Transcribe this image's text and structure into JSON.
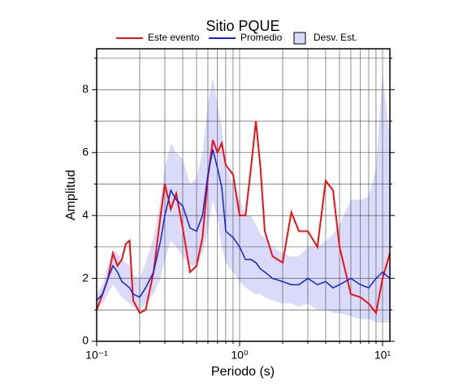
{
  "chart_data": {
    "type": "line",
    "title": "Sitio PQUE",
    "xlabel": "Periodo (s)",
    "ylabel": "Amplitud",
    "xscale": "log",
    "grid": true,
    "xlim": [
      0.1,
      11.25
    ],
    "ylim": [
      0,
      9.3
    ],
    "xticks": [
      {
        "value": 0.1,
        "label": "10⁻¹"
      },
      {
        "value": 1,
        "label": "10⁰"
      },
      {
        "value": 10,
        "label": "10¹"
      }
    ],
    "x_minor_ticks": [
      0.2,
      0.3,
      0.4,
      0.5,
      0.6,
      0.7,
      0.8,
      0.9,
      2,
      3,
      4,
      5,
      6,
      7,
      8,
      9
    ],
    "yticks": [
      0,
      2,
      4,
      6,
      8
    ],
    "y_minor_ticks": [
      1,
      3,
      5,
      7,
      9
    ],
    "x": [
      0.1,
      0.11,
      0.12,
      0.13,
      0.14,
      0.15,
      0.16,
      0.17,
      0.18,
      0.2,
      0.22,
      0.25,
      0.28,
      0.3,
      0.33,
      0.36,
      0.4,
      0.45,
      0.5,
      0.55,
      0.6,
      0.65,
      0.7,
      0.75,
      0.8,
      0.9,
      1.0,
      1.1,
      1.2,
      1.3,
      1.4,
      1.5,
      1.7,
      2.0,
      2.3,
      2.6,
      3.0,
      3.5,
      4.0,
      4.5,
      5.0,
      6.0,
      7.0,
      8.0,
      9.0,
      10,
      11.25
    ],
    "series": [
      {
        "name": "Este evento",
        "color": "#ee1111",
        "values": [
          1.0,
          1.5,
          2.0,
          2.8,
          2.4,
          2.6,
          3.1,
          3.2,
          1.3,
          0.9,
          1.0,
          2.2,
          4.0,
          5.0,
          4.2,
          4.7,
          3.6,
          2.2,
          2.4,
          3.3,
          5.2,
          6.4,
          6.0,
          6.3,
          5.6,
          5.3,
          4.0,
          4.0,
          5.5,
          7.0,
          5.5,
          3.5,
          2.7,
          2.5,
          4.1,
          3.5,
          3.5,
          3.0,
          5.1,
          4.8,
          3.0,
          1.5,
          1.4,
          1.2,
          0.9,
          2.0,
          2.8
        ]
      },
      {
        "name": "Promedio",
        "color": "#1122dd",
        "values": [
          1.3,
          1.5,
          2.0,
          2.4,
          2.2,
          1.9,
          1.8,
          1.7,
          1.5,
          1.4,
          1.7,
          2.2,
          3.2,
          4.0,
          4.8,
          4.5,
          4.3,
          3.6,
          3.5,
          4.0,
          5.3,
          6.1,
          5.5,
          4.9,
          3.5,
          3.3,
          3.0,
          2.6,
          2.6,
          2.5,
          2.3,
          2.2,
          2.0,
          1.9,
          1.8,
          1.8,
          2.0,
          1.8,
          1.9,
          1.7,
          1.8,
          2.0,
          1.8,
          1.7,
          2.0,
          2.2,
          2.0
        ]
      }
    ],
    "band": {
      "name": "Desv. Est.",
      "color": "#dadafa",
      "lower": [
        1.0,
        1.2,
        1.5,
        1.8,
        1.6,
        1.4,
        1.3,
        1.2,
        1.1,
        1.0,
        1.2,
        1.5,
        2.0,
        2.6,
        3.2,
        3.0,
        2.7,
        2.4,
        2.4,
        2.8,
        3.5,
        4.5,
        3.9,
        3.0,
        2.5,
        2.2,
        1.9,
        1.7,
        1.6,
        1.5,
        1.5,
        1.4,
        1.3,
        1.2,
        1.2,
        1.1,
        1.2,
        1.0,
        1.0,
        0.9,
        0.9,
        0.8,
        0.7,
        0.7,
        0.6,
        0.6,
        0.6
      ],
      "upper": [
        1.5,
        1.8,
        2.4,
        2.9,
        2.8,
        2.6,
        2.5,
        2.4,
        2.1,
        2.0,
        2.5,
        3.3,
        4.5,
        5.5,
        6.3,
        6.0,
        5.8,
        5.0,
        5.2,
        6.0,
        7.5,
        8.4,
        7.5,
        6.8,
        5.5,
        5.0,
        4.5,
        4.0,
        4.0,
        3.7,
        3.4,
        3.3,
        3.0,
        2.8,
        2.7,
        2.7,
        3.0,
        3.0,
        3.2,
        3.4,
        3.7,
        4.5,
        4.5,
        4.6,
        5.5,
        8.5,
        6.5
      ]
    }
  }
}
